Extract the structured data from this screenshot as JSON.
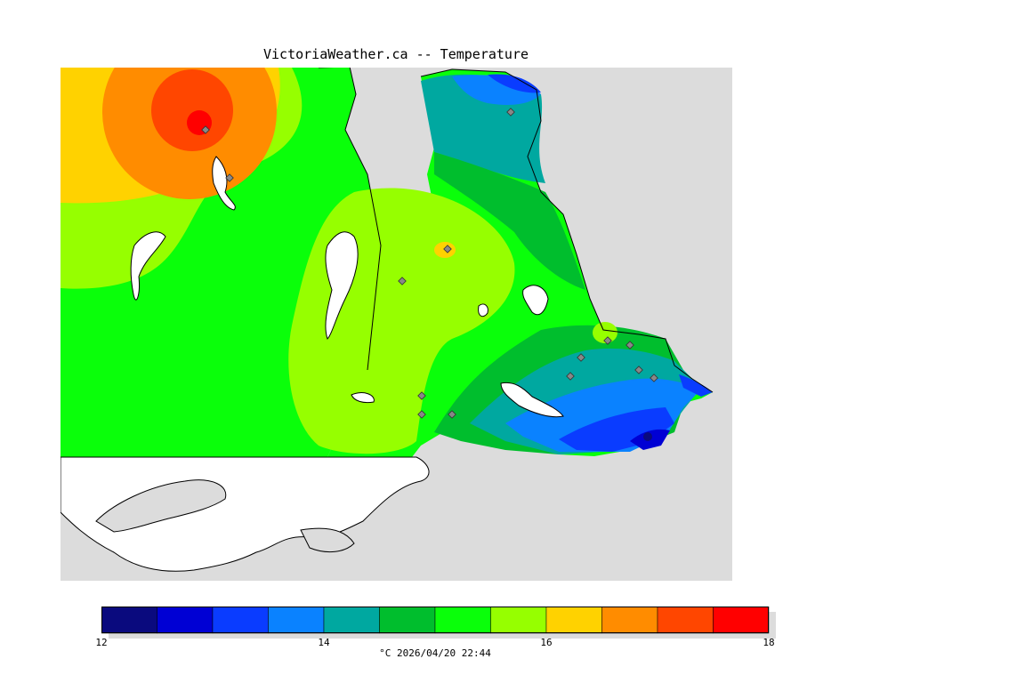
{
  "title": "VictoriaWeather.ca -- Temperature",
  "colors": {
    "background": "#ffffff",
    "land_no_data": "#dcdcdc",
    "water": "#ffffff",
    "station_marker": "#888888"
  },
  "legend": {
    "units": "°C",
    "timestamp": "2026/04/20 22:44",
    "min": 12,
    "max": 18,
    "ticks": [
      "12",
      "14",
      "16",
      "18"
    ],
    "bands": [
      {
        "from": 12.0,
        "to": 12.5,
        "color": "#0a0a7e"
      },
      {
        "from": 12.5,
        "to": 13.0,
        "color": "#0000d4"
      },
      {
        "from": 13.0,
        "to": 13.5,
        "color": "#0a3cff"
      },
      {
        "from": 13.5,
        "to": 14.0,
        "color": "#0a82ff"
      },
      {
        "from": 14.0,
        "to": 14.5,
        "color": "#00a8a0"
      },
      {
        "from": 14.5,
        "to": 15.0,
        "color": "#00be2d"
      },
      {
        "from": 15.0,
        "to": 15.5,
        "color": "#0aff0a"
      },
      {
        "from": 15.5,
        "to": 16.0,
        "color": "#96ff00"
      },
      {
        "from": 16.0,
        "to": 16.5,
        "color": "#ffd200"
      },
      {
        "from": 16.5,
        "to": 17.0,
        "color": "#ff8c00"
      },
      {
        "from": 17.0,
        "to": 17.5,
        "color": "#ff4600"
      },
      {
        "from": 17.5,
        "to": 18.0,
        "color": "#ff0000"
      }
    ]
  },
  "station_count": 14
}
